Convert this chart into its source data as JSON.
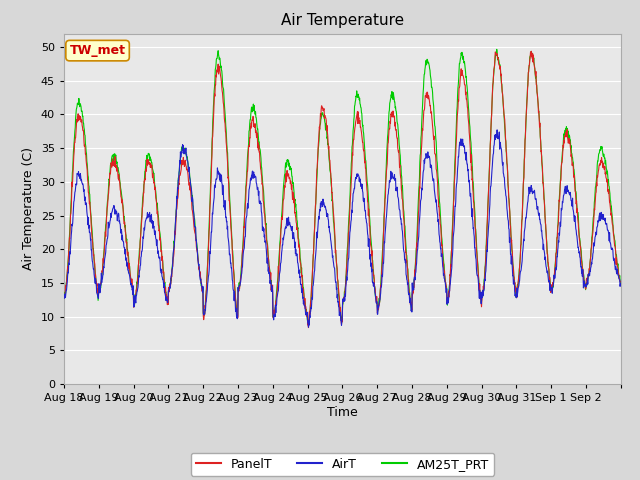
{
  "title": "Air Temperature",
  "xlabel": "Time",
  "ylabel": "Air Temperature (C)",
  "ylim": [
    0,
    52
  ],
  "yticks": [
    0,
    5,
    10,
    15,
    20,
    25,
    30,
    35,
    40,
    45,
    50
  ],
  "x_labels": [
    "Aug 18",
    "Aug 19",
    "Aug 20",
    "Aug 21",
    "Aug 22",
    "Aug 23",
    "Aug 24",
    "Aug 25",
    "Aug 26",
    "Aug 27",
    "Aug 28",
    "Aug 29",
    "Aug 30",
    "Aug 31",
    "Sep 1",
    "Sep 2"
  ],
  "annotation_text": "TW_met",
  "annotation_bg": "#ffffcc",
  "annotation_border": "#cc8800",
  "annotation_color": "#cc0000",
  "panel_color": "#dd2222",
  "air_color": "#2222cc",
  "am25t_color": "#00cc00",
  "fig_bg": "#d8d8d8",
  "plot_bg": "#e8e8e8",
  "grid_color": "#ffffff",
  "title_fontsize": 11,
  "label_fontsize": 9,
  "tick_fontsize": 8,
  "legend_fontsize": 9,
  "n_days": 16,
  "pts_per_day": 96,
  "day_mins": [
    13,
    14,
    12,
    14,
    10,
    14,
    10,
    9,
    12,
    11,
    14,
    12,
    13,
    14,
    14,
    15
  ],
  "day_peaks_panel": [
    40,
    33,
    33,
    33,
    47,
    39,
    31,
    41,
    40,
    40,
    43,
    46,
    49,
    49,
    37,
    33
  ],
  "day_peaks_air": [
    31,
    26,
    25,
    35,
    31,
    31,
    24,
    27,
    31,
    31,
    34,
    36,
    37,
    29,
    29,
    25
  ],
  "day_peaks_am25t": [
    42,
    34,
    34,
    35,
    49,
    41,
    33,
    40,
    43,
    43,
    48,
    49,
    49,
    49,
    38,
    35
  ],
  "peak_timing": 0.42,
  "rise_sharpness": 8,
  "fall_sharpness": 4
}
